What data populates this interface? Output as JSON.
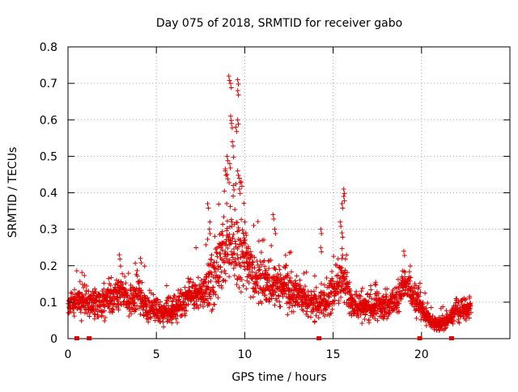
{
  "chart_data": {
    "type": "scatter",
    "title": "Day 075 of 2018, SRMTID for receiver gabo",
    "xlabel": "GPS time / hours",
    "ylabel": "SRMTID / TECUs",
    "xlim": [
      0,
      25
    ],
    "ylim": [
      0,
      0.8
    ],
    "xticks": [
      0,
      5,
      10,
      15,
      20
    ],
    "xtick_labels": [
      "0",
      "5",
      "10",
      "15",
      "20"
    ],
    "yticks": [
      0,
      0.1,
      0.2,
      0.3,
      0.4,
      0.5,
      0.6,
      0.7,
      0.8
    ],
    "ytick_labels": [
      "0",
      "0.1",
      "0.2",
      "0.3",
      "0.4",
      "0.5",
      "0.6",
      "0.7",
      "0.8"
    ],
    "grid": true,
    "marker": "plus",
    "color": "#e00000",
    "series_envelope": {
      "name": "SRMTID",
      "x": [
        0.0,
        0.5,
        1.0,
        1.5,
        2.0,
        2.5,
        3.0,
        3.5,
        4.0,
        4.5,
        5.0,
        5.5,
        6.0,
        6.5,
        7.0,
        7.5,
        8.0,
        8.5,
        9.0,
        9.5,
        10.0,
        10.5,
        11.0,
        11.5,
        12.0,
        12.5,
        13.0,
        13.5,
        14.0,
        14.5,
        15.0,
        15.5,
        16.0,
        16.5,
        17.0,
        17.5,
        18.0,
        18.5,
        19.0,
        19.5,
        20.0,
        20.5,
        21.0,
        21.5,
        22.0,
        22.5
      ],
      "typical": [
        0.09,
        0.1,
        0.1,
        0.09,
        0.1,
        0.12,
        0.13,
        0.1,
        0.12,
        0.08,
        0.08,
        0.07,
        0.08,
        0.1,
        0.13,
        0.12,
        0.15,
        0.19,
        0.27,
        0.24,
        0.24,
        0.17,
        0.16,
        0.15,
        0.14,
        0.13,
        0.12,
        0.1,
        0.09,
        0.1,
        0.13,
        0.17,
        0.1,
        0.09,
        0.08,
        0.09,
        0.09,
        0.1,
        0.15,
        0.12,
        0.08,
        0.05,
        0.04,
        0.05,
        0.08,
        0.08
      ],
      "spread": [
        0.05,
        0.05,
        0.06,
        0.05,
        0.06,
        0.07,
        0.07,
        0.06,
        0.07,
        0.05,
        0.05,
        0.05,
        0.05,
        0.06,
        0.06,
        0.07,
        0.1,
        0.12,
        0.16,
        0.15,
        0.14,
        0.1,
        0.1,
        0.09,
        0.08,
        0.07,
        0.07,
        0.06,
        0.06,
        0.07,
        0.08,
        0.12,
        0.06,
        0.05,
        0.05,
        0.05,
        0.05,
        0.06,
        0.07,
        0.06,
        0.05,
        0.03,
        0.03,
        0.03,
        0.05,
        0.05
      ]
    },
    "spikes": [
      {
        "x": 9.1,
        "y": 0.72
      },
      {
        "x": 9.2,
        "y": 0.7
      },
      {
        "x": 9.6,
        "y": 0.71
      },
      {
        "x": 9.6,
        "y": 0.68
      },
      {
        "x": 9.6,
        "y": 0.6
      },
      {
        "x": 9.5,
        "y": 0.58
      },
      {
        "x": 9.2,
        "y": 0.61
      },
      {
        "x": 9.25,
        "y": 0.59
      },
      {
        "x": 9.3,
        "y": 0.54
      },
      {
        "x": 9.0,
        "y": 0.5
      },
      {
        "x": 9.15,
        "y": 0.48
      },
      {
        "x": 9.0,
        "y": 0.45
      },
      {
        "x": 8.9,
        "y": 0.46
      },
      {
        "x": 9.6,
        "y": 0.46
      },
      {
        "x": 9.7,
        "y": 0.44
      },
      {
        "x": 9.35,
        "y": 0.42
      },
      {
        "x": 9.7,
        "y": 0.41
      },
      {
        "x": 9.8,
        "y": 0.43
      },
      {
        "x": 15.6,
        "y": 0.41
      },
      {
        "x": 15.6,
        "y": 0.39
      },
      {
        "x": 15.5,
        "y": 0.37
      },
      {
        "x": 15.4,
        "y": 0.32
      },
      {
        "x": 15.5,
        "y": 0.29
      },
      {
        "x": 14.3,
        "y": 0.3
      },
      {
        "x": 14.3,
        "y": 0.25
      },
      {
        "x": 11.6,
        "y": 0.34
      },
      {
        "x": 11.7,
        "y": 0.3
      },
      {
        "x": 7.9,
        "y": 0.37
      },
      {
        "x": 8.0,
        "y": 0.3
      },
      {
        "x": 19.0,
        "y": 0.24
      },
      {
        "x": 2.9,
        "y": 0.23
      },
      {
        "x": 4.1,
        "y": 0.22
      }
    ],
    "gap_markers_x": [
      0.5,
      1.2,
      14.2,
      19.9,
      21.7
    ]
  }
}
